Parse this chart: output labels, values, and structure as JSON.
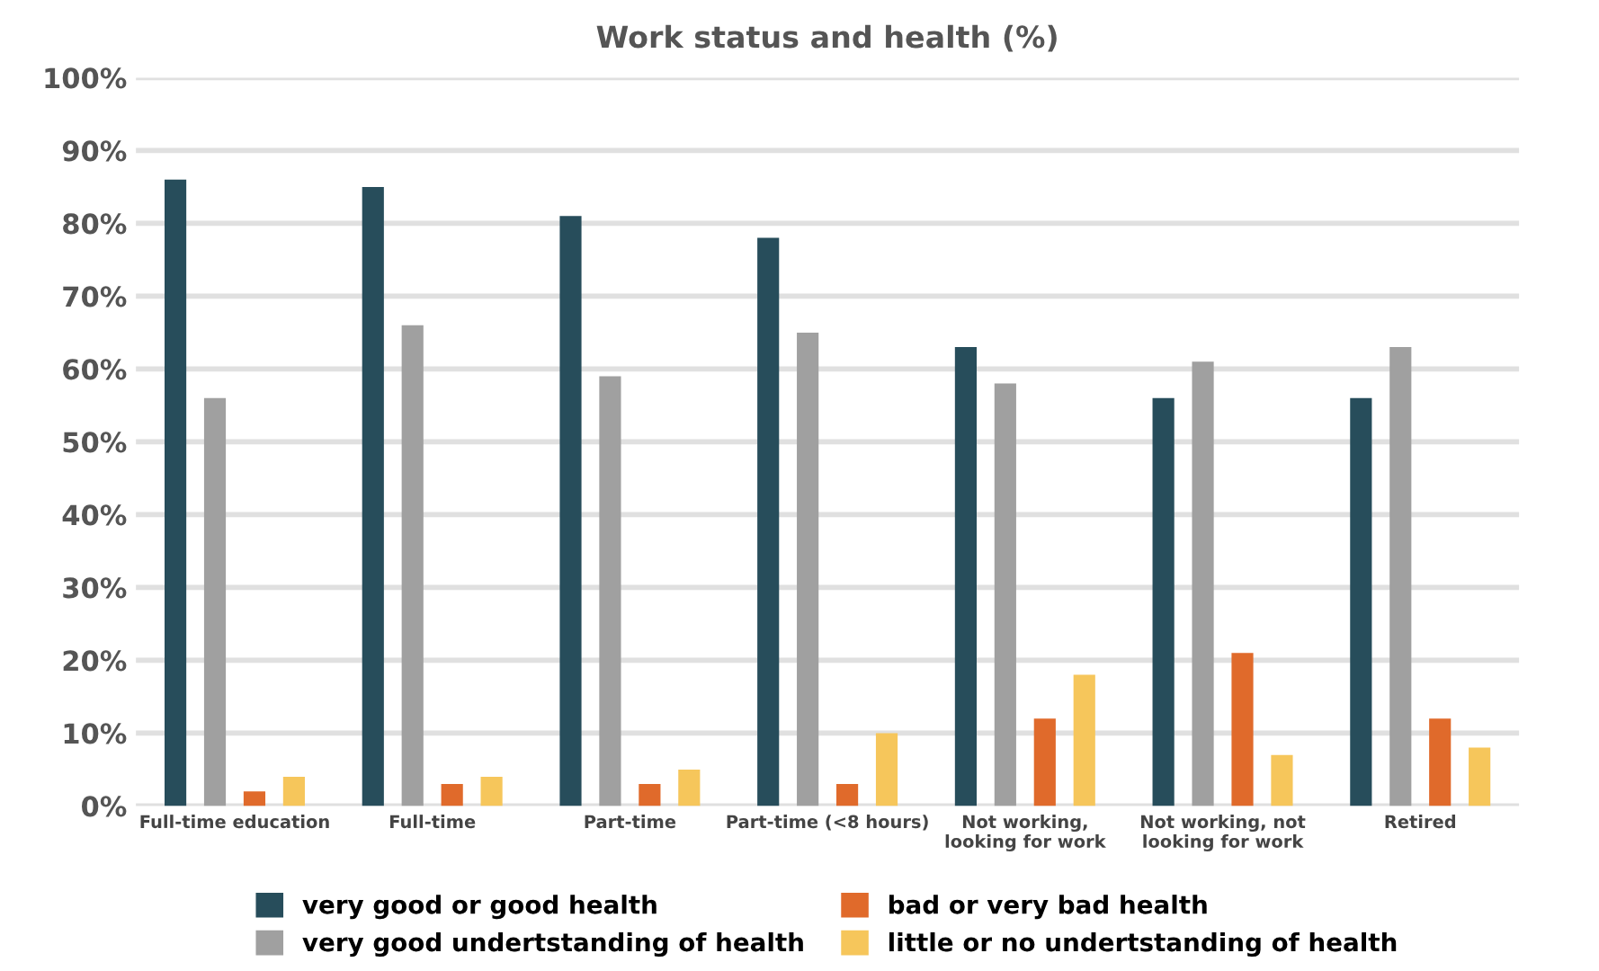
{
  "chart_data": {
    "type": "bar",
    "title": "Work status and health (%)",
    "categories": [
      "Full-time education",
      "Full-time",
      "Part-time",
      "Part-time (<8 hours)",
      "Not working,\nlooking for work",
      "Not working, not\nlooking for work",
      "Retired"
    ],
    "series": [
      {
        "name": "very good or good health",
        "color": "#274d5b",
        "values": [
          86,
          85,
          81,
          78,
          63,
          56,
          56
        ]
      },
      {
        "name": "very good undertstanding of health",
        "color": "#a0a0a0",
        "values": [
          56,
          66,
          59,
          65,
          58,
          61,
          63
        ]
      },
      {
        "name": "bad or very bad health",
        "color": "#e06a2b",
        "values": [
          2,
          3,
          3,
          3,
          12,
          21,
          12
        ]
      },
      {
        "name": "little or no undertstanding of health",
        "color": "#f6c65b",
        "values": [
          4,
          4,
          5,
          10,
          18,
          7,
          8
        ]
      }
    ],
    "ylim": [
      0,
      100
    ],
    "yticks": [
      {
        "value": 0,
        "label": "0%"
      },
      {
        "value": 10,
        "label": "10%"
      },
      {
        "value": 20,
        "label": "20%"
      },
      {
        "value": 30,
        "label": "30%"
      },
      {
        "value": 40,
        "label": "40%"
      },
      {
        "value": 50,
        "label": "50%"
      },
      {
        "value": 60,
        "label": "60%"
      },
      {
        "value": 70,
        "label": "70%"
      },
      {
        "value": 80,
        "label": "80%"
      },
      {
        "value": 90,
        "label": "90%"
      },
      {
        "value": 100,
        "label": "100%"
      }
    ],
    "grid": "y",
    "legend": "bottom"
  }
}
